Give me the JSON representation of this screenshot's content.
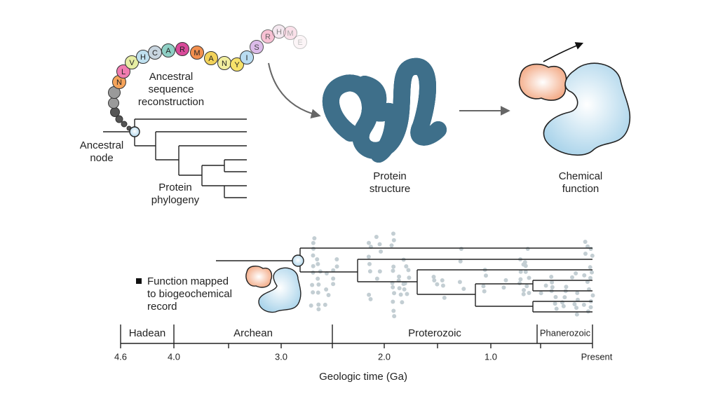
{
  "reconstruction": {
    "residues": [
      "N",
      "L",
      "V",
      "H",
      "C",
      "A",
      "R",
      "M",
      "A",
      "N",
      "Y",
      "I",
      "S",
      "R",
      "H",
      "M",
      "E"
    ],
    "label_lines": [
      "Ancestral",
      "sequence",
      "reconstruction"
    ]
  },
  "phylogeny": {
    "node_label_lines": [
      "Ancestral",
      "node"
    ],
    "label_lines": [
      "Protein",
      "phylogeny"
    ]
  },
  "structure": {
    "label_lines": [
      "Protein",
      "structure"
    ]
  },
  "function": {
    "label_lines": [
      "Chemical",
      "function"
    ]
  },
  "record": {
    "legend_lines": [
      "Function mapped",
      "to biogeochemical",
      "record"
    ]
  },
  "timescale": {
    "eons": [
      "Hadean",
      "Archean",
      "Proterozoic",
      "Phanerozoic"
    ],
    "tick_labels": [
      "4.6",
      "4.0",
      "3.0",
      "2.0",
      "1.0",
      "Present"
    ],
    "axis_title": "Geologic time (Ga)"
  }
}
